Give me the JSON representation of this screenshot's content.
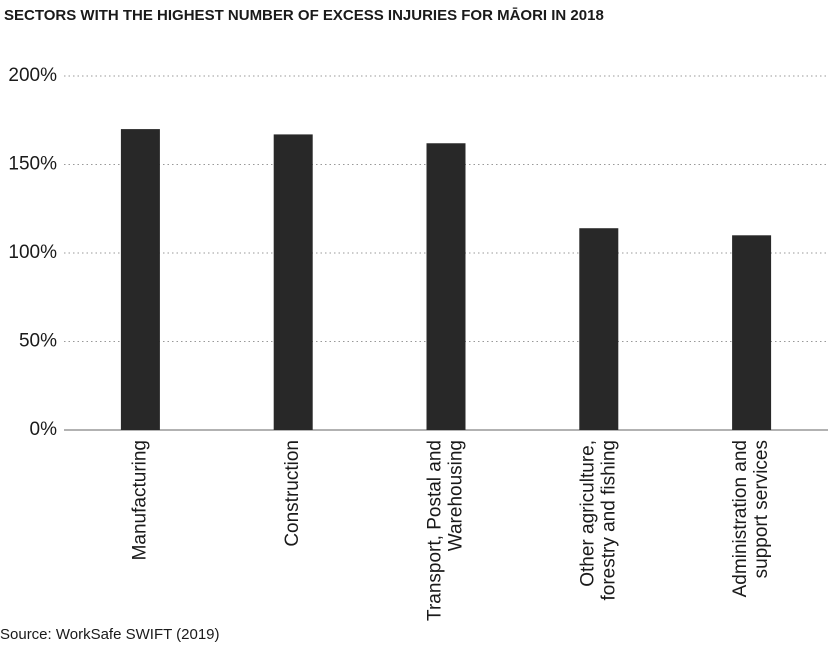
{
  "chart_data": {
    "type": "bar",
    "title": "SECTORS WITH THE HIGHEST NUMBER OF EXCESS INJURIES FOR MĀORI IN 2018",
    "source": "Source: WorkSafe SWIFT (2019)",
    "categories": [
      "Manufacturing",
      "Construction",
      "Transport, Postal and Warehousing",
      "Other agriculture, forestry and fishing",
      "Administration and support services"
    ],
    "values": [
      170,
      167,
      162,
      114,
      110
    ],
    "color": "#282828",
    "ylim": [
      0,
      200
    ],
    "yticks": [
      {
        "value": 0,
        "label": "0%"
      },
      {
        "value": 50,
        "label": "50%"
      },
      {
        "value": 100,
        "label": "100%"
      },
      {
        "value": 150,
        "label": "150%"
      },
      {
        "value": 200,
        "label": "200%"
      }
    ],
    "grid": true
  }
}
